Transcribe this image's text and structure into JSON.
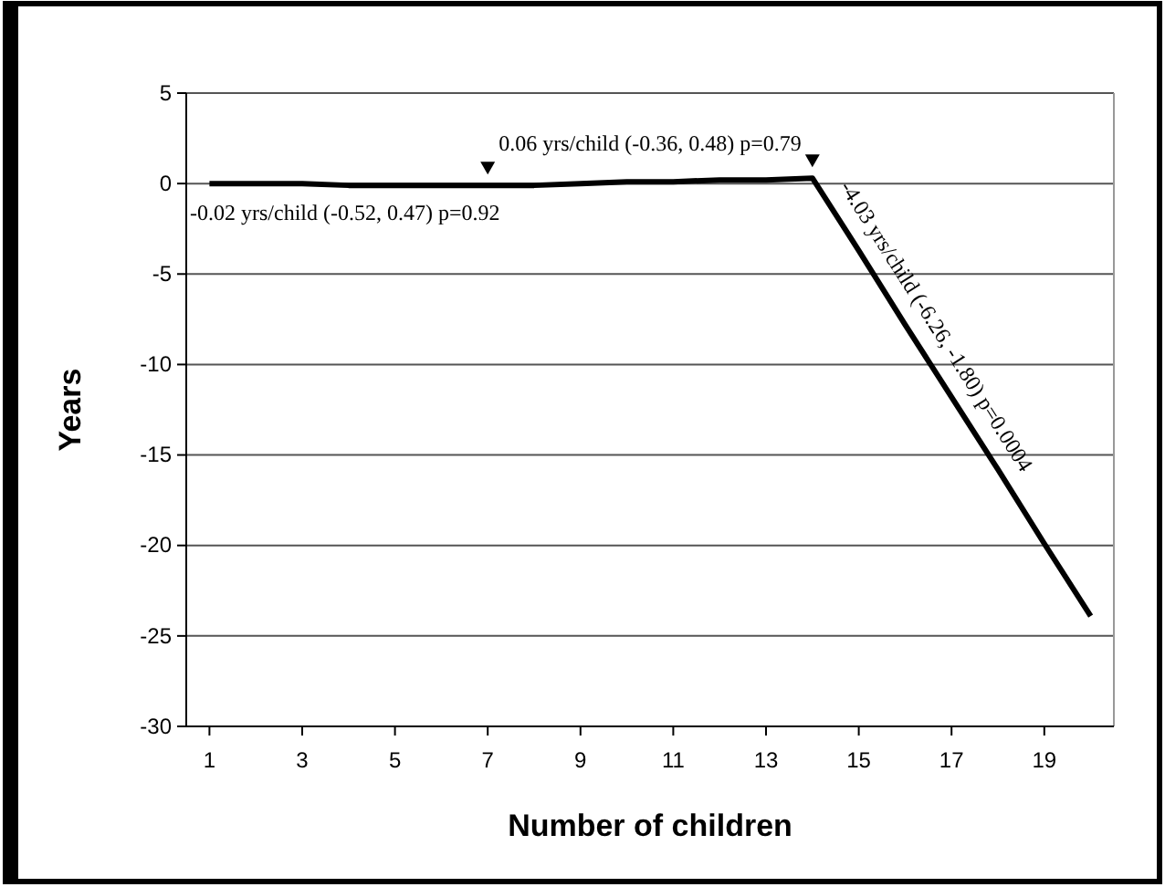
{
  "chart_data": {
    "type": "line",
    "xlabel": "Number of children",
    "ylabel": "Years",
    "x": [
      1,
      2,
      3,
      4,
      5,
      6,
      7,
      8,
      9,
      10,
      11,
      12,
      13,
      14,
      15,
      16,
      17,
      18,
      19,
      20
    ],
    "series": [
      {
        "color": "#000000",
        "values": [
          0,
          0,
          0,
          -0.1,
          -0.1,
          -0.1,
          -0.1,
          -0.1,
          0,
          0.1,
          0.1,
          0.2,
          0.2,
          0.3,
          -3.7,
          -7.8,
          -11.8,
          -15.8,
          -19.9,
          -23.9
        ]
      }
    ],
    "xlim": [
      0.5,
      20.5
    ],
    "xticks": [
      1,
      3,
      5,
      7,
      9,
      11,
      13,
      15,
      17,
      19
    ],
    "ylim": [
      -30,
      5
    ],
    "yticks": [
      -30,
      -25,
      -20,
      -15,
      -10,
      -5,
      0,
      5
    ],
    "grid": "y",
    "marker": "none",
    "line_style": "solid",
    "annotations": [
      "-0.02 yrs/child (-0.52, 0.47) p=0.92",
      "0.06 yrs/child (-0.36, 0.48) p=0.79",
      "-4.03 yrs/child (-6.26, -1.80) p=0.0004"
    ]
  }
}
